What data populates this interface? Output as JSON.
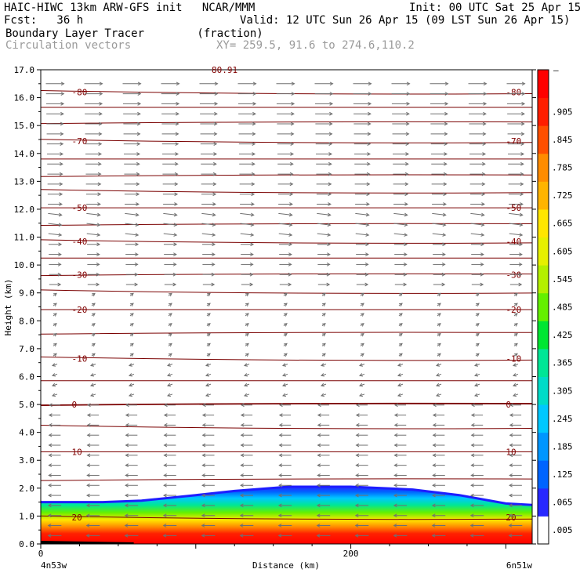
{
  "header": {
    "model_line": "HAIC-HIWC 13km ARW-GFS init   NCAR/MMM",
    "init_line": "Init: 00 UTC Sat 25 Apr 15",
    "fcst_line": "Fcst:   36 h",
    "valid_line": "Valid: 12 UTC Sun 26 Apr 15 (09 LST Sun 26 Apr 15)",
    "field_line": "Boundary Layer Tracer        (fraction)",
    "vector_line": "Circulation vectors",
    "xy_line": "XY= 259.5, 91.6 to 274.6,110.2"
  },
  "chart_data": {
    "type": "heatmap",
    "ylabel": "Height (km)",
    "xlabel": "Distance (km)",
    "ylim": [
      0,
      17
    ],
    "y_ticks": [
      "0.0",
      "1.0",
      "2.0",
      "3.0",
      "4.0",
      "5.0",
      "6.0",
      "7.0",
      "8.0",
      "9.0",
      "10.0",
      "11.0",
      "12.0",
      "13.0",
      "14.0",
      "15.0",
      "16.0",
      "17.0"
    ],
    "x_ticks": [
      {
        "value": 0,
        "label": "0"
      },
      {
        "value": 200,
        "label": "200"
      }
    ],
    "x_endpoint_labels": {
      "left": "4n53w",
      "right": "6n51w"
    },
    "xlim": [
      0,
      317
    ],
    "tracer_top_km": [
      [
        0,
        1.5
      ],
      [
        40,
        1.5
      ],
      [
        65,
        1.55
      ],
      [
        100,
        1.75
      ],
      [
        125,
        1.9
      ],
      [
        160,
        2.05
      ],
      [
        200,
        2.05
      ],
      [
        240,
        1.95
      ],
      [
        270,
        1.75
      ],
      [
        300,
        1.45
      ],
      [
        317,
        1.4
      ]
    ],
    "colorbar": {
      "labels": [
        ".005",
        ".065",
        ".125",
        ".185",
        ".245",
        ".305",
        ".365",
        ".425",
        ".485",
        ".545",
        ".605",
        ".665",
        ".725",
        ".785",
        ".845",
        ".905"
      ],
      "top_label": "–",
      "colors": [
        "#ffffff",
        "#2828ff",
        "#0064ff",
        "#0096ff",
        "#00c8ff",
        "#00dcc8",
        "#00e696",
        "#00e632",
        "#64f000",
        "#b4f000",
        "#e6f000",
        "#ffe600",
        "#ffb400",
        "#ff8c00",
        "#ff5000",
        "#ff1e00",
        "#ff0000"
      ]
    },
    "contour_levels": [
      {
        "height_km": 0.95,
        "label": "20"
      },
      {
        "height_km": 3.3,
        "label": "10"
      },
      {
        "height_km": 5.0,
        "label": "0"
      },
      {
        "height_km": 6.65,
        "label": "-10"
      },
      {
        "height_km": 8.4,
        "label": "-20"
      },
      {
        "height_km": 9.65,
        "label": "-30"
      },
      {
        "height_km": 10.85,
        "label": "-40"
      },
      {
        "height_km": 12.05,
        "label": "-50"
      },
      {
        "height_km": 14.45,
        "label": "-70"
      },
      {
        "height_km": 16.2,
        "label": "-80"
      }
    ],
    "contour_lines_km": [
      0.95,
      2.3,
      3.3,
      4.2,
      5.0,
      5.85,
      6.65,
      7.55,
      8.4,
      9.05,
      9.65,
      10.25,
      10.85,
      11.45,
      12.05,
      12.65,
      13.2,
      13.8,
      14.45,
      15.1,
      15.65,
      16.2
    ],
    "top_partial_label": "80.91"
  }
}
